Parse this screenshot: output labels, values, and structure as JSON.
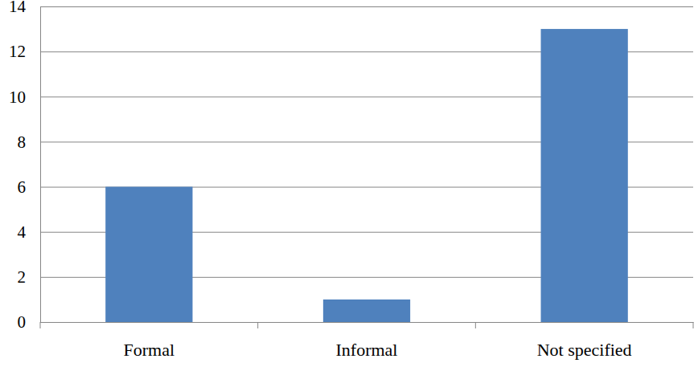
{
  "chart_data": {
    "type": "bar",
    "categories": [
      "Formal",
      "Informal",
      "Not specified"
    ],
    "values": [
      6,
      1,
      13
    ],
    "color": "#4f81bd",
    "ylim": [
      0,
      14
    ],
    "yticks": [
      0,
      2,
      4,
      6,
      8,
      10,
      12,
      14
    ],
    "grid": true
  }
}
